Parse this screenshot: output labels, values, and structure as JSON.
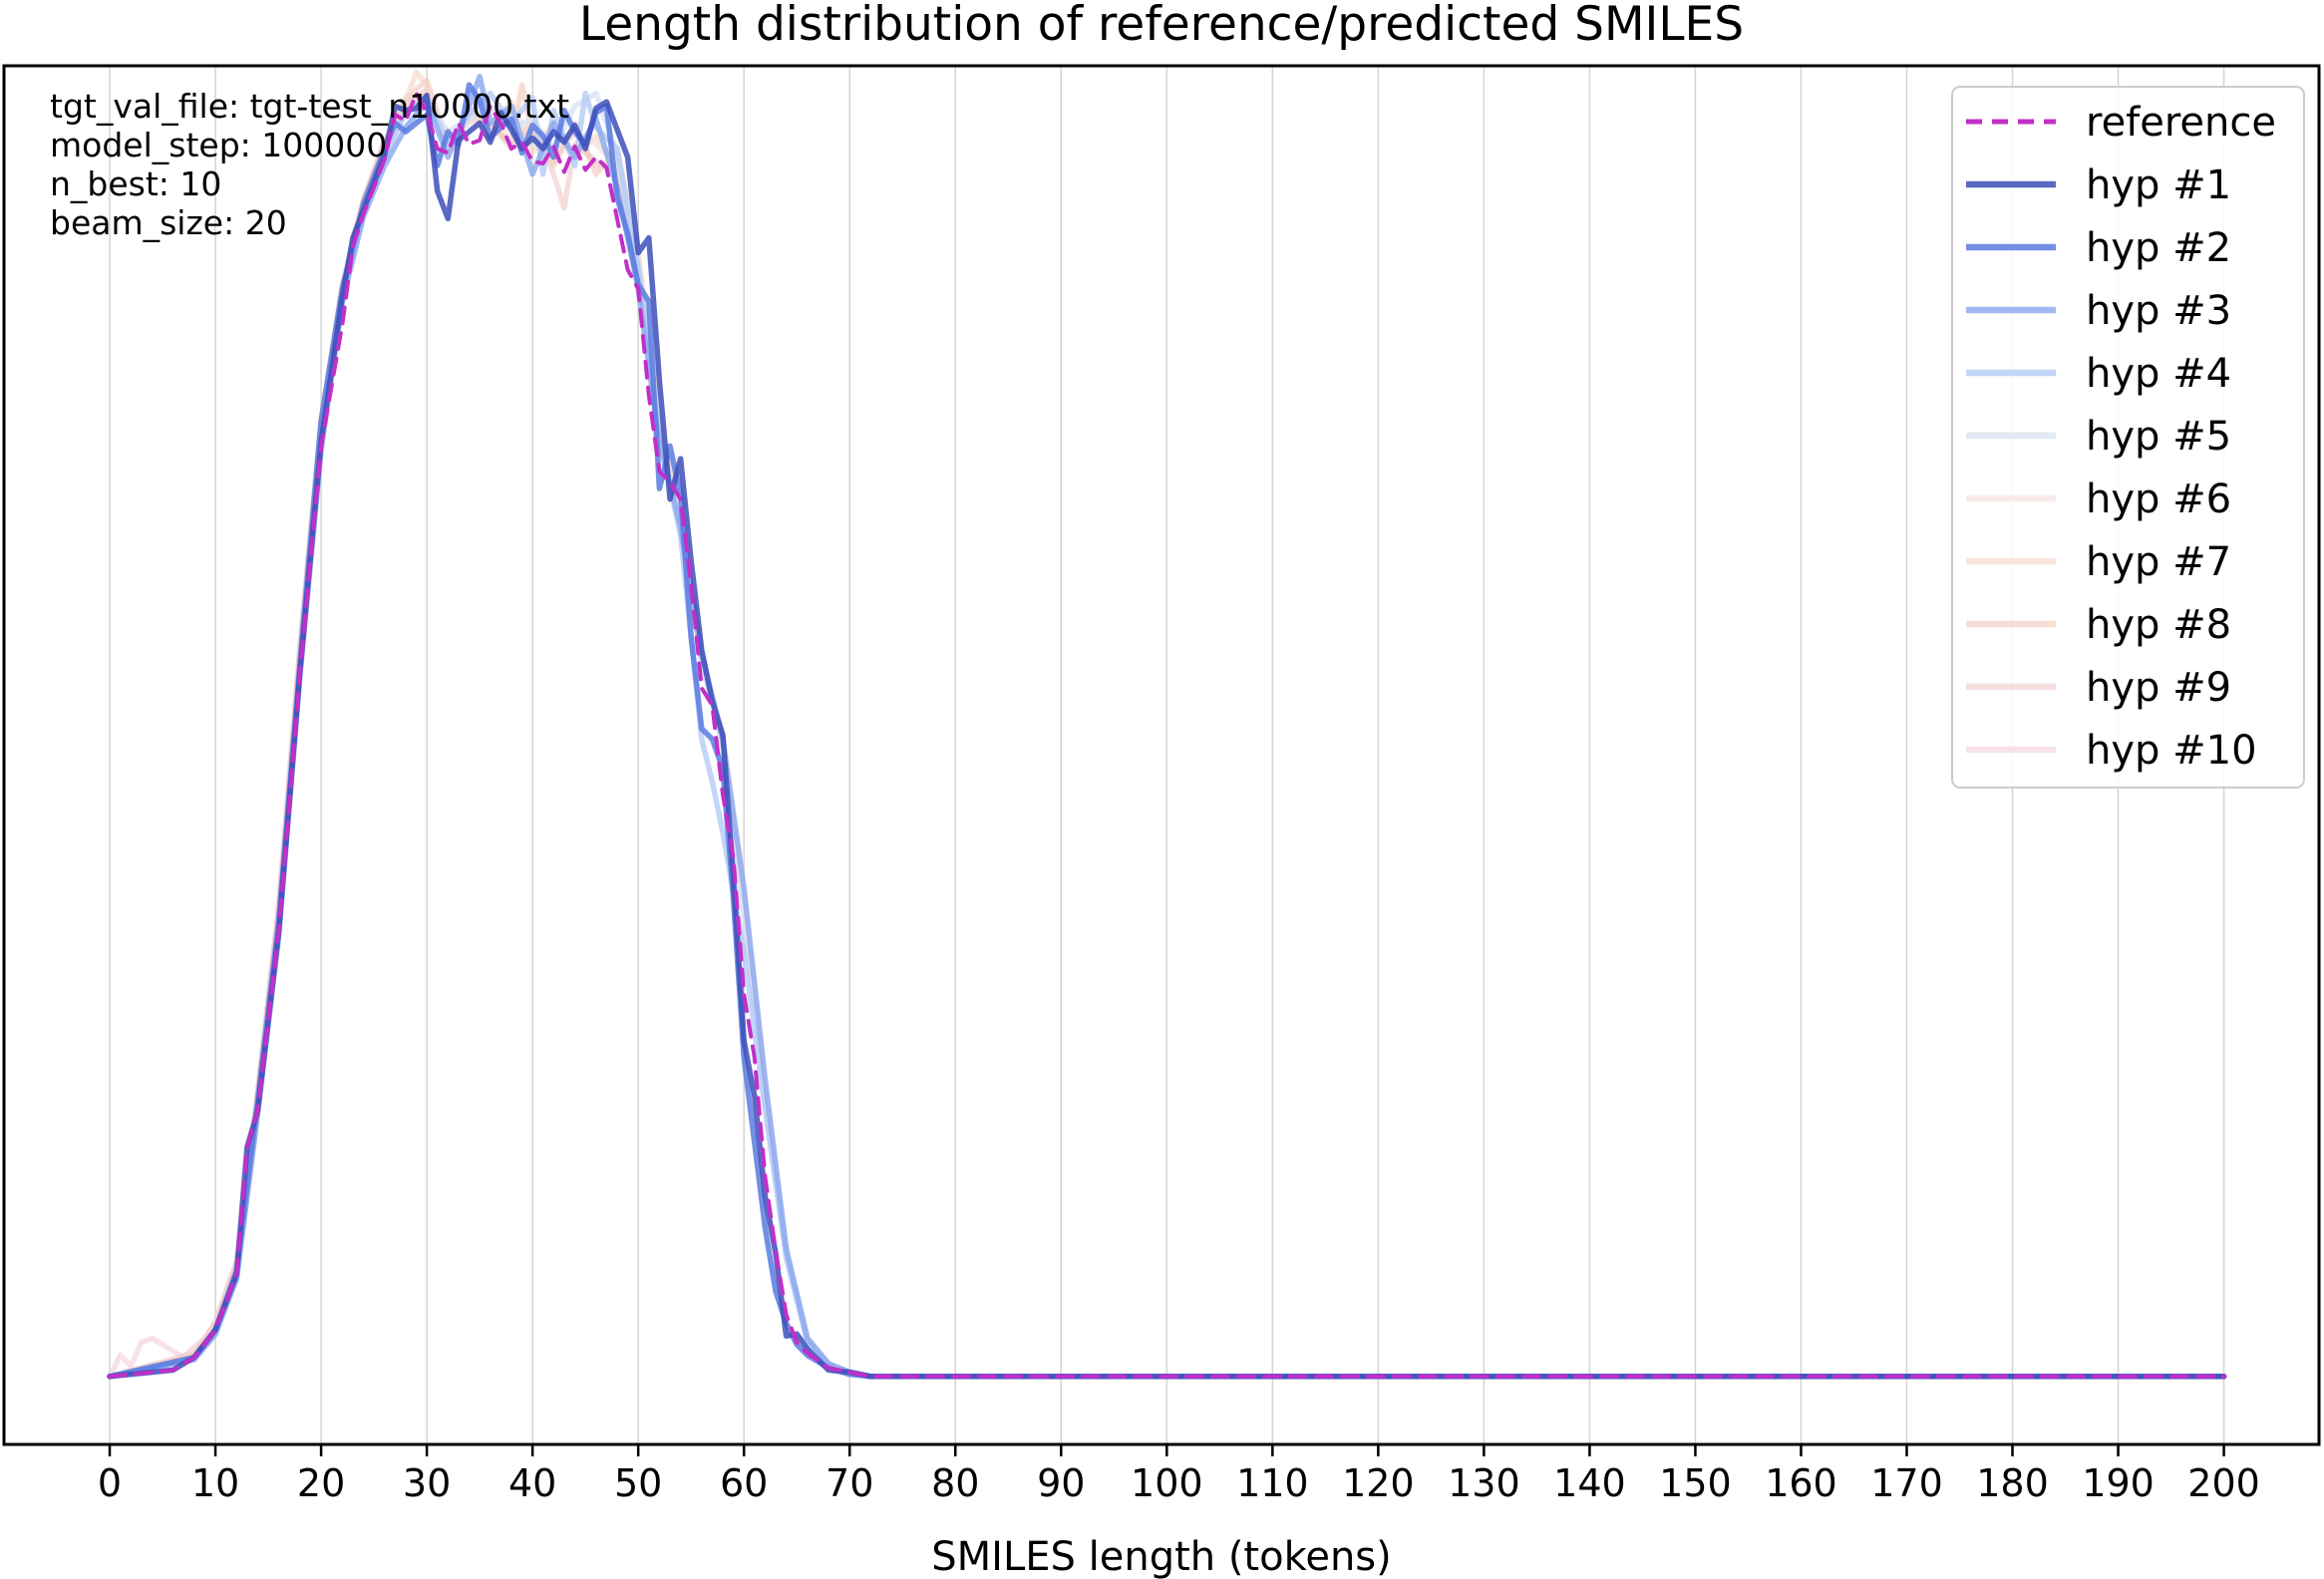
{
  "chart_data": {
    "type": "line",
    "title": "Length distribution of reference/predicted SMILES",
    "xlabel": "SMILES length (tokens)",
    "ylabel": "",
    "xlim": [
      -10,
      209
    ],
    "ylim": [
      -0.0032,
      0.0617
    ],
    "x_ticks": [
      "0",
      "10",
      "20",
      "30",
      "40",
      "50",
      "60",
      "70",
      "80",
      "90",
      "100",
      "110",
      "120",
      "130",
      "140",
      "150",
      "160",
      "170",
      "180",
      "190",
      "200"
    ],
    "y_ticks_shown": false,
    "grid": "vertical",
    "annotation": [
      "tgt_val_file: tgt-test_n10000.txt",
      "model_step: 100000",
      "n_best: 10",
      "beam_size: 20"
    ],
    "legend_position": "upper right",
    "colors": {
      "reference": "#c22fc8",
      "hyp1": "#3d4fb8",
      "hyp2": "#5b7be0",
      "hyp3": "#8aa8ef",
      "hyp4": "#b4cbf6",
      "hyp5": "#d9e2f4",
      "hyp6": "#f2dcda",
      "hyp7": "#f6d3c6",
      "hyp8": "#f2c8b8",
      "hyp9": "#eec3c4",
      "hyp10": "#f1cfd9"
    },
    "series": [
      {
        "name": "reference",
        "key": "reference",
        "width": 4,
        "dash": "16,10",
        "opacity": 1,
        "x": [
          0,
          6,
          8,
          10,
          12,
          13,
          14,
          16,
          18,
          20,
          22,
          23,
          24,
          26,
          27,
          28,
          29,
          30,
          31,
          32,
          33,
          34,
          35,
          36,
          37,
          38,
          39,
          40,
          41,
          42,
          43,
          44,
          45,
          46,
          47,
          48,
          49,
          50,
          51,
          52,
          53,
          54,
          55,
          56,
          57,
          58,
          59,
          60,
          61,
          62,
          63,
          64,
          65,
          66,
          68,
          70,
          72,
          200
        ],
        "y": [
          0,
          0.0003,
          0.0009,
          0.0022,
          0.0048,
          0.0108,
          0.0125,
          0.021,
          0.0331,
          0.0438,
          0.0495,
          0.0532,
          0.0547,
          0.0573,
          0.0594,
          0.0591,
          0.0604,
          0.0595,
          0.0578,
          0.0576,
          0.059,
          0.058,
          0.0582,
          0.0598,
          0.059,
          0.0578,
          0.0581,
          0.0572,
          0.0571,
          0.0579,
          0.0567,
          0.0579,
          0.0568,
          0.0574,
          0.0569,
          0.0545,
          0.0521,
          0.0512,
          0.0462,
          0.0426,
          0.0421,
          0.0413,
          0.0373,
          0.0324,
          0.0316,
          0.0274,
          0.0244,
          0.018,
          0.015,
          0.0094,
          0.0059,
          0.0029,
          0.0016,
          0.0011,
          0.0004,
          0.0002,
          0,
          0
        ]
      },
      {
        "name": "hyp #1",
        "key": "hyp1",
        "width": 5.5,
        "dash": "",
        "opacity": 0.85,
        "x": [
          0,
          6,
          8,
          10,
          12,
          13,
          14,
          16,
          18,
          20,
          22,
          23,
          24,
          26,
          27,
          28,
          29,
          30,
          31,
          32,
          33,
          34,
          35,
          36,
          37,
          38,
          39,
          40,
          41,
          42,
          43,
          44,
          45,
          46,
          47,
          48,
          49,
          50,
          51,
          52,
          53,
          54,
          55,
          56,
          57,
          58,
          59,
          60,
          61,
          62,
          63,
          64,
          65,
          66,
          68,
          70,
          72,
          200
        ],
        "y": [
          0,
          0.0003,
          0.0009,
          0.0022,
          0.0048,
          0.0108,
          0.0125,
          0.021,
          0.0332,
          0.044,
          0.0508,
          0.0536,
          0.0549,
          0.0575,
          0.0598,
          0.0596,
          0.0597,
          0.0603,
          0.0558,
          0.0545,
          0.0582,
          0.0586,
          0.059,
          0.0581,
          0.0595,
          0.0587,
          0.0578,
          0.0583,
          0.0578,
          0.0586,
          0.0581,
          0.0589,
          0.0578,
          0.0597,
          0.06,
          0.0587,
          0.0574,
          0.0529,
          0.0536,
          0.0469,
          0.0413,
          0.0432,
          0.0384,
          0.0342,
          0.0318,
          0.0302,
          0.0235,
          0.0158,
          0.0132,
          0.0085,
          0.0058,
          0.0019,
          0.002,
          0.0013,
          0.0003,
          0.0002,
          0,
          0
        ]
      },
      {
        "name": "hyp #2",
        "key": "hyp2",
        "width": 5.5,
        "dash": "",
        "opacity": 0.85,
        "x": [
          0,
          8,
          10,
          12,
          14,
          16,
          18,
          20,
          22,
          24,
          26,
          27,
          28,
          30,
          31,
          32,
          33,
          34,
          35,
          36,
          37,
          38,
          39,
          40,
          41,
          42,
          43,
          44,
          45,
          46,
          47,
          48,
          49,
          50,
          51,
          52,
          53,
          54,
          55,
          56,
          57,
          58,
          59,
          60,
          61,
          62,
          63,
          64,
          65,
          66,
          68,
          70,
          72,
          200
        ],
        "y": [
          0,
          0.0009,
          0.0022,
          0.005,
          0.013,
          0.0215,
          0.0336,
          0.045,
          0.0512,
          0.0552,
          0.0578,
          0.059,
          0.0586,
          0.0594,
          0.057,
          0.0586,
          0.058,
          0.0608,
          0.0601,
          0.0583,
          0.0588,
          0.0592,
          0.0576,
          0.0589,
          0.0584,
          0.0574,
          0.0596,
          0.0586,
          0.058,
          0.0595,
          0.0598,
          0.0555,
          0.0538,
          0.0514,
          0.0506,
          0.0418,
          0.0438,
          0.0415,
          0.0348,
          0.0305,
          0.03,
          0.0286,
          0.0225,
          0.015,
          0.011,
          0.007,
          0.004,
          0.0025,
          0.0015,
          0.001,
          0.0004,
          0.0001,
          0,
          0
        ]
      },
      {
        "name": "hyp #3",
        "key": "hyp3",
        "width": 5.5,
        "dash": "",
        "opacity": 0.8,
        "x": [
          0,
          8,
          10,
          12,
          14,
          16,
          18,
          20,
          22,
          24,
          26,
          28,
          30,
          32,
          34,
          35,
          36,
          38,
          40,
          42,
          44,
          46,
          48,
          50,
          52,
          54,
          56,
          58,
          60,
          62,
          64,
          66,
          68,
          70,
          72,
          200
        ],
        "y": [
          0,
          0.0008,
          0.002,
          0.0046,
          0.0124,
          0.0208,
          0.033,
          0.0436,
          0.0506,
          0.0546,
          0.057,
          0.0588,
          0.06,
          0.0574,
          0.0598,
          0.0612,
          0.059,
          0.0598,
          0.0566,
          0.059,
          0.0574,
          0.0592,
          0.056,
          0.0512,
          0.044,
          0.04,
          0.034,
          0.03,
          0.023,
          0.014,
          0.006,
          0.0018,
          0.0006,
          0.0002,
          0,
          0
        ]
      },
      {
        "name": "hyp #4",
        "key": "hyp4",
        "width": 5.5,
        "dash": "",
        "opacity": 0.8,
        "x": [
          0,
          8,
          10,
          12,
          14,
          16,
          18,
          20,
          22,
          24,
          26,
          28,
          30,
          32,
          34,
          36,
          38,
          40,
          41,
          42,
          44,
          45,
          46,
          48,
          50,
          52,
          54,
          56,
          57,
          58,
          60,
          62,
          64,
          66,
          68,
          70,
          72,
          200
        ],
        "y": [
          0,
          0.0008,
          0.002,
          0.0046,
          0.0124,
          0.0208,
          0.0332,
          0.044,
          0.0508,
          0.0548,
          0.0574,
          0.0596,
          0.0602,
          0.058,
          0.0594,
          0.0604,
          0.059,
          0.0602,
          0.0566,
          0.0596,
          0.057,
          0.0604,
          0.0588,
          0.0578,
          0.0522,
          0.0442,
          0.0396,
          0.03,
          0.028,
          0.0256,
          0.02,
          0.0126,
          0.0056,
          0.0016,
          0.0006,
          0.0002,
          0,
          0
        ]
      },
      {
        "name": "hyp #5",
        "key": "hyp5",
        "width": 5.5,
        "dash": "",
        "opacity": 0.8,
        "x": [
          0,
          8,
          10,
          12,
          14,
          16,
          18,
          20,
          22,
          24,
          26,
          28,
          30,
          32,
          34,
          36,
          38,
          40,
          42,
          44,
          46,
          48,
          50,
          52,
          54,
          56,
          58,
          60,
          62,
          64,
          66,
          68,
          70,
          72,
          200
        ],
        "y": [
          0,
          0.0008,
          0.0021,
          0.0047,
          0.0126,
          0.0212,
          0.0334,
          0.0442,
          0.0506,
          0.055,
          0.0576,
          0.0594,
          0.06,
          0.0586,
          0.0592,
          0.0598,
          0.0588,
          0.0592,
          0.0578,
          0.0598,
          0.0604,
          0.0576,
          0.052,
          0.0446,
          0.04,
          0.0336,
          0.0296,
          0.0216,
          0.013,
          0.006,
          0.0018,
          0.0006,
          0.0002,
          0,
          0
        ]
      },
      {
        "name": "hyp #6",
        "key": "hyp6",
        "width": 5.5,
        "dash": "",
        "opacity": 0.6,
        "x": [
          0,
          8,
          10,
          12,
          14,
          16,
          18,
          20,
          22,
          24,
          26,
          28,
          30,
          32,
          34,
          36,
          38,
          40,
          42,
          44,
          46,
          48,
          50,
          52,
          54,
          56,
          58,
          60,
          62,
          64,
          66,
          68,
          70,
          72,
          200
        ],
        "y": [
          0,
          0.0009,
          0.0023,
          0.005,
          0.013,
          0.0216,
          0.0336,
          0.0444,
          0.051,
          0.055,
          0.0578,
          0.0596,
          0.0606,
          0.0582,
          0.059,
          0.0596,
          0.0582,
          0.059,
          0.0578,
          0.0586,
          0.058,
          0.057,
          0.0524,
          0.044,
          0.0404,
          0.034,
          0.03,
          0.0226,
          0.0136,
          0.006,
          0.0018,
          0.0006,
          0.0002,
          0,
          0
        ]
      },
      {
        "name": "hyp #7",
        "key": "hyp7",
        "width": 5.5,
        "dash": "",
        "opacity": 0.6,
        "x": [
          0,
          8,
          10,
          12,
          14,
          16,
          18,
          20,
          22,
          24,
          26,
          28,
          29,
          30,
          32,
          34,
          36,
          38,
          40,
          42,
          44,
          46,
          48,
          50,
          52,
          54,
          56,
          58,
          60,
          62,
          64,
          66,
          68,
          70,
          72,
          200
        ],
        "y": [
          0,
          0.001,
          0.0024,
          0.0052,
          0.0132,
          0.0218,
          0.034,
          0.0446,
          0.0512,
          0.0552,
          0.058,
          0.06,
          0.0614,
          0.0608,
          0.0576,
          0.0592,
          0.0588,
          0.06,
          0.0576,
          0.059,
          0.0574,
          0.0584,
          0.0568,
          0.0518,
          0.0446,
          0.04,
          0.0336,
          0.03,
          0.022,
          0.013,
          0.0058,
          0.0018,
          0.0006,
          0.0002,
          0,
          0
        ]
      },
      {
        "name": "hyp #8",
        "key": "hyp8",
        "width": 5.5,
        "dash": "",
        "opacity": 0.6,
        "x": [
          0,
          8,
          10,
          12,
          14,
          16,
          18,
          20,
          22,
          24,
          26,
          28,
          30,
          32,
          34,
          36,
          38,
          39,
          40,
          42,
          44,
          46,
          48,
          50,
          52,
          54,
          56,
          58,
          60,
          62,
          64,
          66,
          68,
          70,
          72,
          200
        ],
        "y": [
          0,
          0.001,
          0.0024,
          0.0052,
          0.0134,
          0.022,
          0.0342,
          0.0448,
          0.0512,
          0.0554,
          0.058,
          0.0602,
          0.061,
          0.058,
          0.0596,
          0.059,
          0.058,
          0.0608,
          0.0584,
          0.057,
          0.059,
          0.0566,
          0.0578,
          0.0528,
          0.045,
          0.0404,
          0.0338,
          0.03,
          0.0224,
          0.0132,
          0.006,
          0.0018,
          0.0006,
          0.0002,
          0,
          0
        ]
      },
      {
        "name": "hyp #9",
        "key": "hyp9",
        "width": 5.5,
        "dash": "",
        "opacity": 0.55,
        "x": [
          0,
          8,
          10,
          12,
          14,
          16,
          18,
          20,
          22,
          24,
          26,
          28,
          30,
          32,
          34,
          36,
          38,
          40,
          42,
          43,
          44,
          46,
          48,
          50,
          52,
          54,
          56,
          58,
          60,
          62,
          64,
          66,
          68,
          70,
          72,
          200
        ],
        "y": [
          0,
          0.0011,
          0.0025,
          0.0054,
          0.0134,
          0.0222,
          0.0344,
          0.045,
          0.0514,
          0.0554,
          0.0582,
          0.06,
          0.0604,
          0.0578,
          0.0594,
          0.059,
          0.0578,
          0.059,
          0.0566,
          0.055,
          0.058,
          0.0572,
          0.0566,
          0.052,
          0.0448,
          0.0402,
          0.0336,
          0.0298,
          0.0222,
          0.013,
          0.0058,
          0.0018,
          0.0006,
          0.0002,
          0,
          0
        ]
      },
      {
        "name": "hyp #10",
        "key": "hyp10",
        "width": 5.5,
        "dash": "",
        "opacity": 0.6,
        "x": [
          0,
          1,
          2,
          3,
          4,
          5,
          6,
          7,
          8,
          9,
          10,
          12,
          14,
          16,
          18,
          20,
          22,
          24,
          26,
          28,
          30,
          32,
          34,
          36,
          38,
          40,
          42,
          44,
          46,
          48,
          50,
          52,
          54,
          56,
          58,
          60,
          62,
          64,
          66,
          68,
          70,
          72,
          200
        ],
        "y": [
          0,
          0.001,
          0.0005,
          0.0016,
          0.0018,
          0.0015,
          0.0012,
          0.0009,
          0.0014,
          0.0018,
          0.0026,
          0.0054,
          0.0134,
          0.0222,
          0.0344,
          0.045,
          0.0512,
          0.0552,
          0.058,
          0.0598,
          0.0606,
          0.058,
          0.0592,
          0.059,
          0.058,
          0.059,
          0.0572,
          0.0586,
          0.057,
          0.0572,
          0.0522,
          0.0446,
          0.04,
          0.0338,
          0.03,
          0.0222,
          0.0132,
          0.0058,
          0.0018,
          0.0006,
          0.0002,
          0,
          0
        ]
      }
    ]
  }
}
